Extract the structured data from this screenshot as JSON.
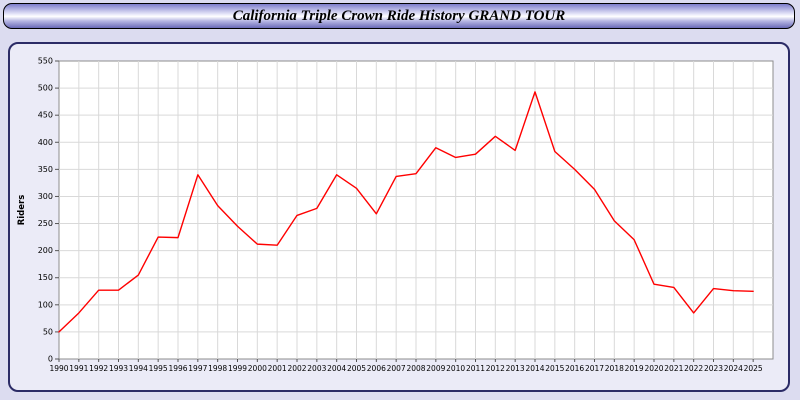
{
  "title": "California Triple Crown Ride History GRAND TOUR",
  "colors": {
    "line": "#ff0000",
    "page_bg": "#dcdcf0",
    "panel_bg": "#ebebf7",
    "grid": "#d9d9d9",
    "plot_border": "#8c8c8c",
    "panel_border": "#2b2b66"
  },
  "chart_data": {
    "type": "line",
    "title": "California Triple Crown Ride History GRAND TOUR",
    "xlabel": "",
    "ylabel": "Riders",
    "ylim": [
      0,
      550
    ],
    "ytick_step": 50,
    "grid": true,
    "legend": "none",
    "x": [
      1990,
      1991,
      1992,
      1993,
      1994,
      1995,
      1996,
      1997,
      1998,
      1999,
      2000,
      2001,
      2002,
      2003,
      2004,
      2005,
      2006,
      2007,
      2008,
      2009,
      2010,
      2011,
      2012,
      2013,
      2014,
      2015,
      2016,
      2017,
      2018,
      2019,
      2020,
      2021,
      2022,
      2023,
      2024,
      2025
    ],
    "series": [
      {
        "name": "Riders",
        "color": "#ff0000",
        "values": [
          50,
          85,
          127,
          127,
          155,
          225,
          224,
          340,
          283,
          245,
          212,
          210,
          265,
          278,
          340,
          315,
          268,
          337,
          342,
          390,
          372,
          378,
          411,
          385,
          493,
          383,
          350,
          313,
          255,
          220,
          138,
          132,
          85,
          130,
          126,
          125
        ]
      }
    ]
  }
}
